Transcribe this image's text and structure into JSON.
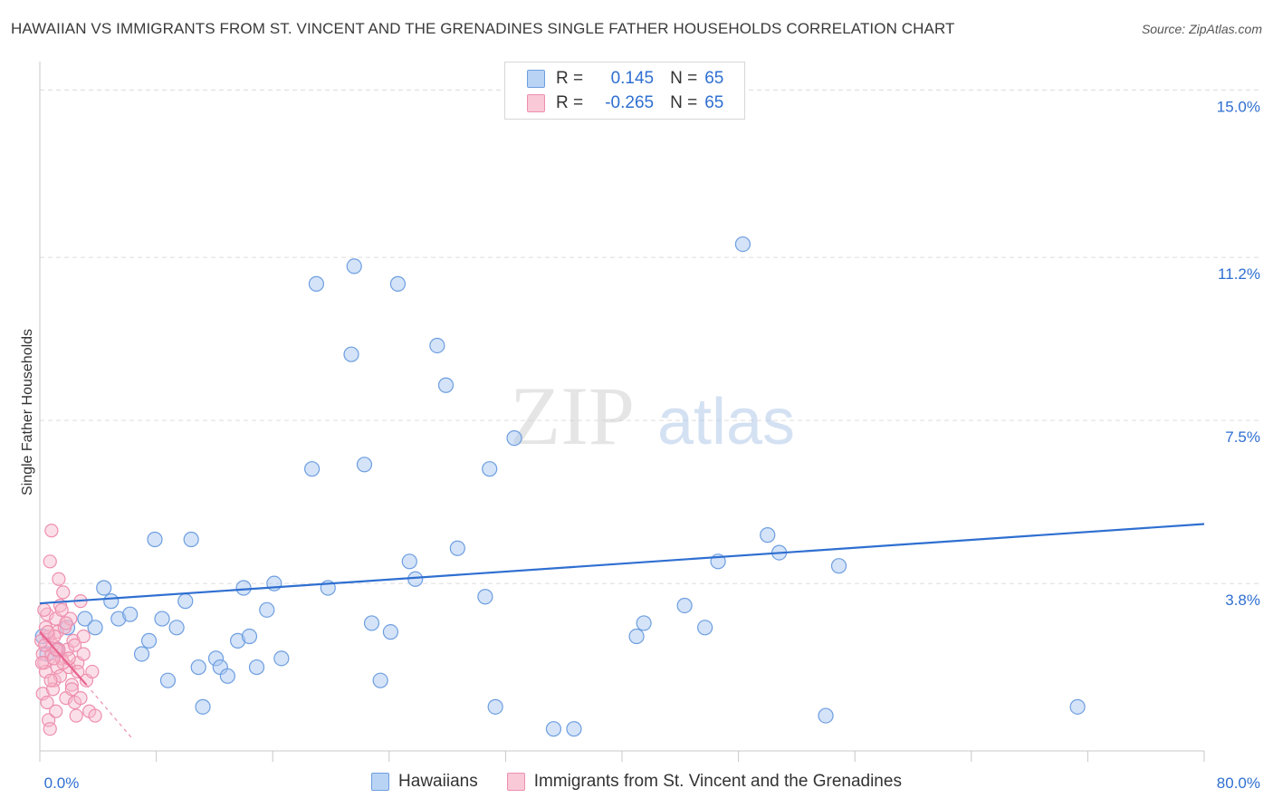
{
  "title": "HAWAIIAN VS IMMIGRANTS FROM ST. VINCENT AND THE GRENADINES SINGLE FATHER HOUSEHOLDS CORRELATION CHART",
  "source": "Source: ZipAtlas.com",
  "watermark": {
    "zip": "ZIP",
    "atlas": "atlas"
  },
  "legend": {
    "rows": [
      {
        "r_label": "R =",
        "r_value": "0.145",
        "n_label": "N =",
        "n_value": "65"
      },
      {
        "r_label": "R =",
        "r_value": "-0.265",
        "n_label": "N =",
        "n_value": "65"
      }
    ]
  },
  "colors": {
    "blue": "#2f6fd1",
    "blue_fill": "#a9c8f2",
    "blue_stroke": "#6d9ee0",
    "pink": "#e8638f",
    "pink_fill": "#f6b7cb",
    "pink_stroke": "#ee8fae",
    "tick_label": "#2f6fd1",
    "grid": "#dcdcdc"
  },
  "chart_data": {
    "type": "scatter",
    "ylabel": "Single Father Households",
    "x_tick_labels": [
      "0.0%",
      "80.0%"
    ],
    "y_tick_labels": [
      "3.8%",
      "7.5%",
      "11.2%",
      "15.0%"
    ],
    "y_tick_values": [
      3.8,
      7.5,
      11.2,
      15.0
    ],
    "xlim": [
      0,
      80
    ],
    "ylim": [
      0,
      15.5
    ],
    "grid": "horizontal dashed",
    "series": [
      {
        "name": "Hawaiians",
        "color": "#2f6fd1",
        "trend": {
          "x": [
            0,
            80
          ],
          "y": [
            3.35,
            5.15
          ]
        },
        "points": [
          [
            0.2,
            2.6
          ],
          [
            0.5,
            2.2
          ],
          [
            1.2,
            2.3
          ],
          [
            1.9,
            2.8
          ],
          [
            3.1,
            3.0
          ],
          [
            3.8,
            2.8
          ],
          [
            4.4,
            3.7
          ],
          [
            4.9,
            3.4
          ],
          [
            5.4,
            3.0
          ],
          [
            6.2,
            3.1
          ],
          [
            7.0,
            2.2
          ],
          [
            7.5,
            2.5
          ],
          [
            7.9,
            4.8
          ],
          [
            8.4,
            3.0
          ],
          [
            8.8,
            1.6
          ],
          [
            9.4,
            2.8
          ],
          [
            10.0,
            3.4
          ],
          [
            10.4,
            4.8
          ],
          [
            10.9,
            1.9
          ],
          [
            11.2,
            1.0
          ],
          [
            12.1,
            2.1
          ],
          [
            12.4,
            1.9
          ],
          [
            12.9,
            1.7
          ],
          [
            13.6,
            2.5
          ],
          [
            14.0,
            3.7
          ],
          [
            14.4,
            2.6
          ],
          [
            14.9,
            1.9
          ],
          [
            15.6,
            3.2
          ],
          [
            16.1,
            3.8
          ],
          [
            16.6,
            2.1
          ],
          [
            18.7,
            6.4
          ],
          [
            19.0,
            10.6
          ],
          [
            19.8,
            3.7
          ],
          [
            21.4,
            9.0
          ],
          [
            21.6,
            11.0
          ],
          [
            22.3,
            6.5
          ],
          [
            22.8,
            2.9
          ],
          [
            23.4,
            1.6
          ],
          [
            24.1,
            2.7
          ],
          [
            24.6,
            10.6
          ],
          [
            25.4,
            4.3
          ],
          [
            25.8,
            3.9
          ],
          [
            27.3,
            9.2
          ],
          [
            27.9,
            8.3
          ],
          [
            28.7,
            4.6
          ],
          [
            30.6,
            3.5
          ],
          [
            30.9,
            6.4
          ],
          [
            31.3,
            1.0
          ],
          [
            32.6,
            7.1
          ],
          [
            35.3,
            0.5
          ],
          [
            36.7,
            0.5
          ],
          [
            41.0,
            2.6
          ],
          [
            41.5,
            2.9
          ],
          [
            44.3,
            3.3
          ],
          [
            45.7,
            2.8
          ],
          [
            46.6,
            4.3
          ],
          [
            48.3,
            11.5
          ],
          [
            50.0,
            4.9
          ],
          [
            50.8,
            4.5
          ],
          [
            54.0,
            0.8
          ],
          [
            54.9,
            4.2
          ],
          [
            71.3,
            1.0
          ]
        ]
      },
      {
        "name": "Immigrants from St. Vincent and the Grenadines",
        "color": "#e8638f",
        "trend": {
          "x": [
            0,
            3.2
          ],
          "y": [
            2.7,
            1.5
          ]
        },
        "trend_dashed": {
          "x": [
            3.2,
            6.3
          ],
          "y": [
            1.5,
            0.3
          ]
        },
        "points": [
          [
            0.1,
            2.5
          ],
          [
            0.2,
            2.2
          ],
          [
            0.3,
            2.0
          ],
          [
            0.4,
            1.8
          ],
          [
            0.5,
            3.1
          ],
          [
            0.6,
            2.6
          ],
          [
            0.7,
            4.3
          ],
          [
            0.8,
            5.0
          ],
          [
            0.9,
            2.4
          ],
          [
            1.0,
            1.6
          ],
          [
            1.1,
            3.0
          ],
          [
            1.2,
            2.7
          ],
          [
            1.3,
            3.9
          ],
          [
            1.4,
            3.3
          ],
          [
            1.5,
            2.1
          ],
          [
            1.6,
            3.6
          ],
          [
            1.7,
            2.8
          ],
          [
            1.8,
            1.2
          ],
          [
            1.9,
            2.3
          ],
          [
            2.0,
            1.9
          ],
          [
            2.1,
            3.0
          ],
          [
            2.2,
            1.5
          ],
          [
            2.3,
            2.5
          ],
          [
            2.4,
            1.1
          ],
          [
            2.5,
            0.8
          ],
          [
            2.6,
            2.0
          ],
          [
            2.8,
            3.4
          ],
          [
            3.0,
            2.2
          ],
          [
            3.2,
            1.6
          ],
          [
            0.2,
            1.3
          ],
          [
            0.3,
            3.2
          ],
          [
            0.4,
            2.8
          ],
          [
            0.5,
            1.1
          ],
          [
            0.6,
            0.7
          ],
          [
            0.7,
            0.5
          ],
          [
            0.8,
            2.2
          ],
          [
            0.9,
            1.4
          ],
          [
            1.0,
            2.6
          ],
          [
            1.1,
            0.9
          ],
          [
            1.2,
            1.9
          ],
          [
            1.3,
            2.3
          ],
          [
            1.4,
            1.7
          ],
          [
            1.5,
            3.2
          ],
          [
            1.6,
            2.0
          ],
          [
            1.8,
            2.9
          ],
          [
            2.0,
            2.1
          ],
          [
            2.2,
            1.4
          ],
          [
            2.4,
            2.4
          ],
          [
            2.6,
            1.8
          ],
          [
            2.8,
            1.2
          ],
          [
            3.0,
            2.6
          ],
          [
            3.4,
            0.9
          ],
          [
            3.6,
            1.8
          ],
          [
            3.8,
            0.8
          ],
          [
            0.15,
            2.0
          ],
          [
            0.35,
            2.4
          ],
          [
            0.55,
            2.7
          ],
          [
            0.75,
            1.6
          ],
          [
            0.95,
            2.1
          ],
          [
            1.15,
            2.3
          ]
        ]
      }
    ]
  }
}
